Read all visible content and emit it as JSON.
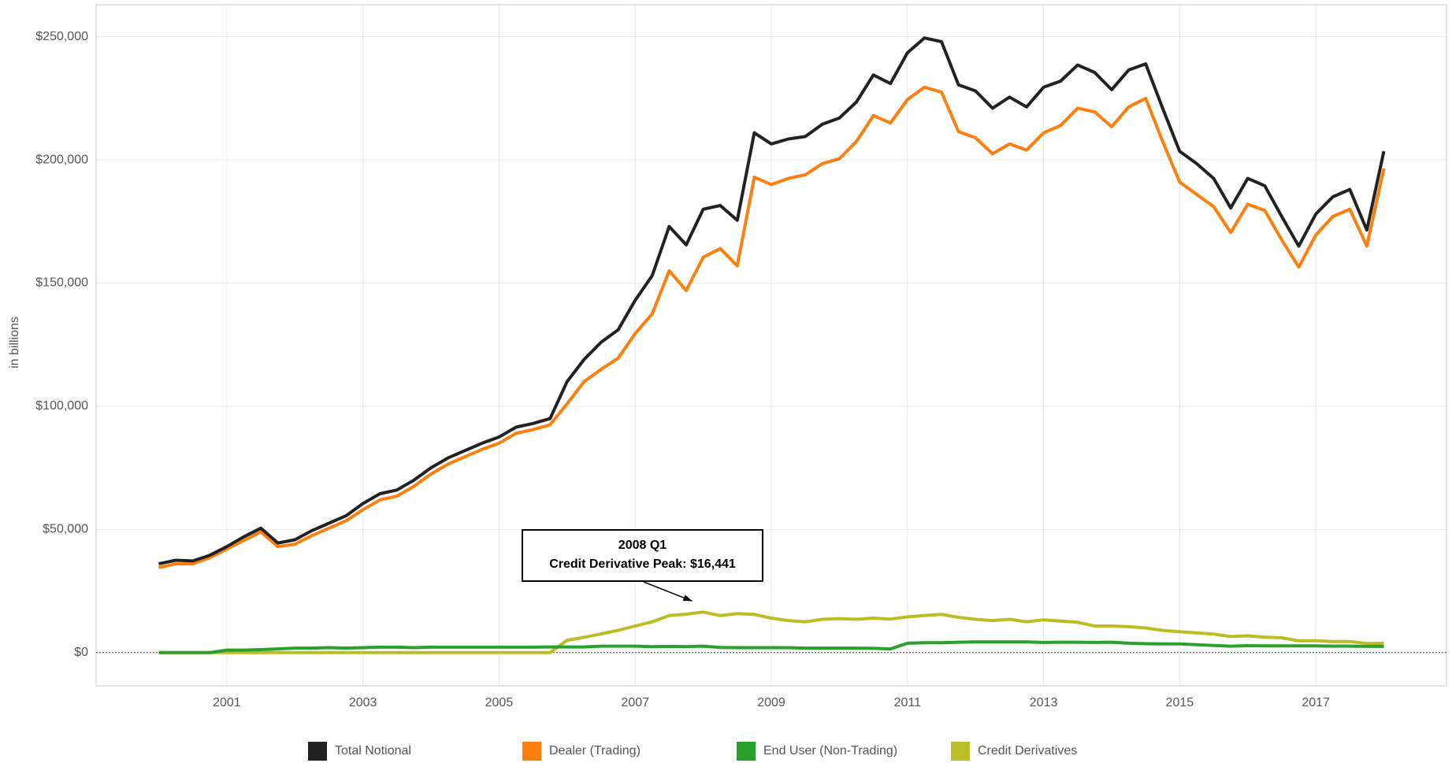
{
  "chart_data": {
    "type": "line",
    "y_axis_label": "in billions",
    "x": [
      2000,
      2000.25,
      2000.5,
      2000.75,
      2001,
      2001.25,
      2001.5,
      2001.75,
      2002,
      2002.25,
      2002.5,
      2002.75,
      2003,
      2003.25,
      2003.5,
      2003.75,
      2004,
      2004.25,
      2004.5,
      2004.75,
      2005,
      2005.25,
      2005.5,
      2005.75,
      2006,
      2006.25,
      2006.5,
      2006.75,
      2007,
      2007.25,
      2007.5,
      2007.75,
      2008,
      2008.25,
      2008.5,
      2008.75,
      2009,
      2009.25,
      2009.5,
      2009.75,
      2010,
      2010.25,
      2010.5,
      2010.75,
      2011,
      2011.25,
      2011.5,
      2011.75,
      2012,
      2012.25,
      2012.5,
      2012.75,
      2013,
      2013.25,
      2013.5,
      2013.75,
      2014,
      2014.25,
      2014.5,
      2014.75,
      2015,
      2015.25,
      2015.5,
      2015.75,
      2016,
      2016.25,
      2016.5,
      2016.75,
      2017,
      2017.25,
      2017.5,
      2017.75,
      2018
    ],
    "series": [
      {
        "name": "Total Notional",
        "color": "#222222",
        "values": [
          36000,
          37500,
          37200,
          39500,
          43000,
          47000,
          50500,
          44500,
          45800,
          49500,
          52500,
          55500,
          60500,
          64500,
          66000,
          70000,
          75000,
          79000,
          82000,
          85000,
          87500,
          91500,
          93000,
          95000,
          110000,
          119000,
          126000,
          131000,
          143000,
          153000,
          173000,
          165500,
          180000,
          181500,
          175500,
          211000,
          206500,
          208500,
          209500,
          214500,
          217000,
          223500,
          234500,
          231000,
          243500,
          249500,
          248000,
          230500,
          228000,
          221000,
          225500,
          221500,
          229500,
          232000,
          238500,
          235500,
          228500,
          236500,
          239000,
          221000,
          203500,
          198500,
          192500,
          180500,
          192500,
          189500,
          177000,
          165000,
          178000,
          185000,
          188000,
          171500,
          203500
        ]
      },
      {
        "name": "Dealer (Trading)",
        "color": "#ff7f0e",
        "values": [
          34500,
          36000,
          36000,
          38500,
          42000,
          45500,
          49000,
          43000,
          44000,
          47500,
          50500,
          53500,
          58000,
          62000,
          63500,
          67500,
          72500,
          76500,
          79500,
          82500,
          85000,
          89000,
          90500,
          92500,
          101000,
          110000,
          115000,
          119500,
          129500,
          137500,
          155000,
          147000,
          160500,
          164000,
          157000,
          193000,
          190000,
          192500,
          194000,
          198500,
          200500,
          207500,
          218000,
          215000,
          224500,
          229500,
          227500,
          211500,
          209000,
          202500,
          206500,
          204000,
          211000,
          214000,
          221000,
          219500,
          213500,
          221500,
          225000,
          207500,
          191000,
          186000,
          181000,
          170500,
          182000,
          179500,
          167500,
          156500,
          169500,
          177000,
          180000,
          165000,
          196500
        ]
      },
      {
        "name": "End User (Non-Trading)",
        "color": "#2ca02c",
        "values": [
          0,
          0,
          0,
          0,
          1000,
          1000,
          1200,
          1500,
          1800,
          1800,
          2000,
          1800,
          2000,
          2200,
          2200,
          2000,
          2200,
          2200,
          2200,
          2200,
          2200,
          2200,
          2200,
          2300,
          2300,
          2300,
          2600,
          2600,
          2600,
          2400,
          2500,
          2400,
          2600,
          2100,
          2000,
          2000,
          2000,
          2000,
          1800,
          1800,
          1800,
          1800,
          1700,
          1500,
          3800,
          4000,
          4000,
          4200,
          4300,
          4300,
          4300,
          4300,
          4100,
          4200,
          4200,
          4100,
          4200,
          3800,
          3600,
          3500,
          3500,
          3200,
          2900,
          2600,
          2800,
          2700,
          2700,
          2700,
          2700,
          2600,
          2600,
          2500,
          2500
        ]
      },
      {
        "name": "Credit Derivatives",
        "color": "#bcbd22",
        "values": [
          0,
          0,
          0,
          0,
          0,
          0,
          0,
          0,
          0,
          0,
          0,
          0,
          0,
          0,
          0,
          0,
          0,
          0,
          0,
          0,
          0,
          0,
          0,
          0,
          5000,
          6200,
          7600,
          9000,
          10800,
          12500,
          15000,
          15600,
          16441,
          15000,
          15800,
          15500,
          14000,
          13000,
          12500,
          13500,
          13800,
          13500,
          14000,
          13600,
          14500,
          15000,
          15500,
          14300,
          13500,
          13000,
          13500,
          12500,
          13300,
          12800,
          12300,
          10800,
          10800,
          10500,
          10000,
          9000,
          8500,
          8000,
          7500,
          6500,
          6800,
          6300,
          6000,
          4800,
          4800,
          4500,
          4500,
          3700,
          3800
        ]
      }
    ],
    "annotation": {
      "lines": [
        "2008 Q1",
        "Credit Derivative Peak: $16,441"
      ],
      "target": "chart_data.series.3.values.32"
    },
    "xlim": [
      1999.08,
      2018.92
    ],
    "xticks": [
      2001,
      2003,
      2005,
      2007,
      2009,
      2011,
      2013,
      2015,
      2017
    ],
    "ylim": [
      -13500,
      263000
    ],
    "yticks": [
      {
        "value": 0,
        "label": "$0"
      },
      {
        "value": 50000,
        "label": "$50,000"
      },
      {
        "value": 100000,
        "label": "$100,000"
      },
      {
        "value": 150000,
        "label": "$150,000"
      },
      {
        "value": 200000,
        "label": "$200,000"
      },
      {
        "value": 250000,
        "label": "$250,000"
      }
    ],
    "grid": true,
    "zero_line": true,
    "legend": "bottom"
  }
}
